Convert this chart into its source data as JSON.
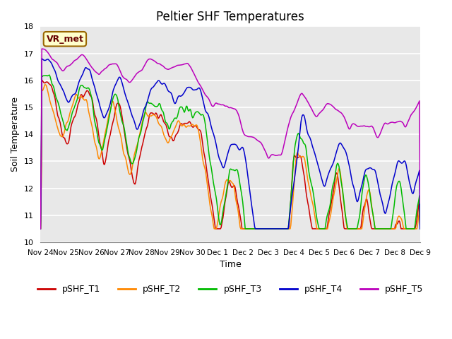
{
  "title": "Peltier SHF Temperatures",
  "xlabel": "Time",
  "ylabel": "Soil Temperature",
  "ylim": [
    10.0,
    18.0
  ],
  "yticks": [
    10.0,
    11.0,
    12.0,
    13.0,
    14.0,
    15.0,
    16.0,
    17.0,
    18.0
  ],
  "xtick_labels": [
    "Nov 24",
    "Nov 25",
    "Nov 26",
    "Nov 27",
    "Nov 28",
    "Nov 29",
    "Nov 30",
    "Dec 1",
    "Dec 2",
    "Dec 3",
    "Dec 4",
    "Dec 5",
    "Dec 6",
    "Dec 7",
    "Dec 8",
    "Dec 9"
  ],
  "legend_labels": [
    "pSHF_T1",
    "pSHF_T2",
    "pSHF_T3",
    "pSHF_T4",
    "pSHF_T5"
  ],
  "colors": [
    "#cc0000",
    "#ff8800",
    "#00bb00",
    "#0000cc",
    "#bb00bb"
  ],
  "annotation_text": "VR_met",
  "annotation_facecolor": "#ffffcc",
  "annotation_edgecolor": "#996600",
  "plot_bg_color": "#e8e8e8",
  "linewidth": 1.1,
  "n_points": 600,
  "title_fontsize": 12
}
